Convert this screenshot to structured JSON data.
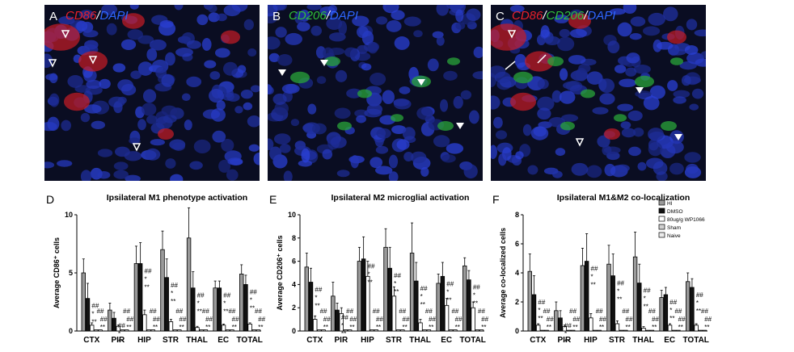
{
  "micrographs": [
    {
      "letter": "A",
      "labels": [
        {
          "text": "CD86",
          "color": "#e8202a"
        },
        {
          "text": "/",
          "color": "#ffffff"
        },
        {
          "text": "DAPI",
          "color": "#2e66ff"
        }
      ]
    },
    {
      "letter": "B",
      "labels": [
        {
          "text": "CD206",
          "color": "#2fbf3a"
        },
        {
          "text": "/",
          "color": "#ffffff"
        },
        {
          "text": "DAPI",
          "color": "#2e66ff"
        }
      ]
    },
    {
      "letter": "C",
      "labels": [
        {
          "text": "CD86",
          "color": "#e8202a"
        },
        {
          "text": "/",
          "color": "#ffffff"
        },
        {
          "text": "CD206",
          "color": "#2fbf3a"
        },
        {
          "text": "/",
          "color": "#ffffff"
        },
        {
          "text": "DAPI",
          "color": "#2e66ff"
        }
      ]
    }
  ],
  "legend": [
    "HI",
    "DMSO",
    "80ug/g WP1066",
    "Sham",
    "Naive"
  ],
  "chart_data": [
    {
      "letter": "D",
      "type": "bar",
      "title": "Ipsilateral M1 phenotype activation",
      "ylabel": "Average CD86⁺ cells",
      "ylim": [
        0,
        10
      ],
      "yticks": [
        0,
        5,
        10
      ],
      "categories": [
        "CTX",
        "PIR",
        "HIP",
        "STR",
        "THAL",
        "EC",
        "TOTAL"
      ],
      "series": [
        {
          "name": "HI",
          "values": [
            5.0,
            1.8,
            5.8,
            7.0,
            8.0,
            3.7,
            4.9
          ],
          "errors": [
            1.2,
            0.6,
            1.5,
            1.6,
            2.6,
            0.6,
            0.8
          ]
        },
        {
          "name": "DMSO",
          "values": [
            2.8,
            1.1,
            5.8,
            4.6,
            3.7,
            3.7,
            4.0
          ],
          "errors": [
            1.3,
            0.5,
            1.8,
            1.6,
            1.4,
            0.6,
            0.8
          ]
        },
        {
          "name": "80ug/g WP1066",
          "values": [
            0.5,
            0.4,
            1.4,
            0.8,
            0.3,
            0.5,
            0.6
          ],
          "errors": [
            0.2,
            0.1,
            0.4,
            0.2,
            0.1,
            0.1,
            0.1
          ]
        },
        {
          "name": "Sham",
          "values": [
            0.1,
            0.1,
            0.1,
            0.1,
            0.1,
            0.1,
            0.1
          ],
          "errors": [
            0,
            0,
            0,
            0,
            0,
            0,
            0
          ]
        },
        {
          "name": "Naive",
          "values": [
            0.1,
            0.1,
            0.1,
            0.1,
            0.1,
            0.1,
            0.1
          ],
          "errors": [
            0,
            0,
            0,
            0,
            0,
            0,
            0
          ]
        }
      ]
    },
    {
      "letter": "E",
      "type": "bar",
      "title": "Ipsilateral M2 microglial activation",
      "ylabel": "Average CD206⁺ cells",
      "ylim": [
        0,
        10
      ],
      "yticks": [
        0,
        2,
        4,
        6,
        8,
        10
      ],
      "categories": [
        "CTX",
        "PIR",
        "HIP",
        "STR",
        "THAL",
        "EC",
        "TOTAL"
      ],
      "series": [
        {
          "name": "HI",
          "values": [
            5.5,
            3.0,
            6.0,
            7.2,
            6.7,
            4.1,
            5.6
          ],
          "errors": [
            1.2,
            1.2,
            1.2,
            1.6,
            2.6,
            0.8,
            0.7
          ]
        },
        {
          "name": "DMSO",
          "values": [
            4.2,
            1.8,
            6.2,
            5.4,
            4.3,
            4.7,
            4.4
          ],
          "errors": [
            1.2,
            0.6,
            1.9,
            1.8,
            1.6,
            1.2,
            0.8
          ]
        },
        {
          "name": "80ug/g WP1066",
          "values": [
            1.0,
            1.5,
            4.7,
            3.0,
            0.7,
            2.2,
            2.0
          ],
          "errors": [
            0.3,
            0.5,
            1.3,
            0.8,
            0.3,
            0.6,
            0.5
          ]
        },
        {
          "name": "Sham",
          "values": [
            0.1,
            0.1,
            0.1,
            0.1,
            0.1,
            0.1,
            0.1
          ],
          "errors": [
            0,
            0,
            0,
            0,
            0,
            0,
            0
          ]
        },
        {
          "name": "Naive",
          "values": [
            0.1,
            0.1,
            0.1,
            0.1,
            0.1,
            0.1,
            0.1
          ],
          "errors": [
            0,
            0,
            0,
            0,
            0,
            0,
            0
          ]
        }
      ]
    },
    {
      "letter": "F",
      "type": "bar",
      "title": "Ipsilateral M1&M2 co-localization",
      "ylabel": "Average co-localized cells",
      "ylim": [
        0,
        8
      ],
      "yticks": [
        0,
        2,
        4,
        6,
        8
      ],
      "categories": [
        "CTX",
        "PIR",
        "HIP",
        "STR",
        "THAL",
        "EC",
        "TOTAL"
      ],
      "series": [
        {
          "name": "HI",
          "values": [
            4.1,
            1.4,
            4.5,
            4.6,
            5.1,
            2.3,
            3.4
          ],
          "errors": [
            1.2,
            0.6,
            1.2,
            1.3,
            1.7,
            0.5,
            0.6
          ]
        },
        {
          "name": "DMSO",
          "values": [
            2.5,
            0.9,
            4.8,
            3.8,
            3.3,
            2.5,
            3.0
          ],
          "errors": [
            1.3,
            0.5,
            1.9,
            1.5,
            1.3,
            0.5,
            0.6
          ]
        },
        {
          "name": "80ug/g WP1066",
          "values": [
            0.4,
            0.3,
            0.9,
            0.5,
            0.2,
            0.4,
            0.4
          ],
          "errors": [
            0.1,
            0.1,
            0.3,
            0.2,
            0.1,
            0.1,
            0.1
          ]
        },
        {
          "name": "Sham",
          "values": [
            0.05,
            0.05,
            0.05,
            0.05,
            0.05,
            0.05,
            0.05
          ],
          "errors": [
            0,
            0,
            0,
            0,
            0,
            0,
            0
          ]
        },
        {
          "name": "Naive",
          "values": [
            0.05,
            0.05,
            0.05,
            0.05,
            0.05,
            0.05,
            0.05
          ],
          "errors": [
            0,
            0,
            0,
            0,
            0,
            0,
            0
          ]
        }
      ]
    }
  ],
  "annotations": {
    "near_wp1066": [
      "##",
      "*",
      "**"
    ],
    "near_sham": [
      "##"
    ],
    "near_naive": [
      "##",
      "**"
    ]
  }
}
